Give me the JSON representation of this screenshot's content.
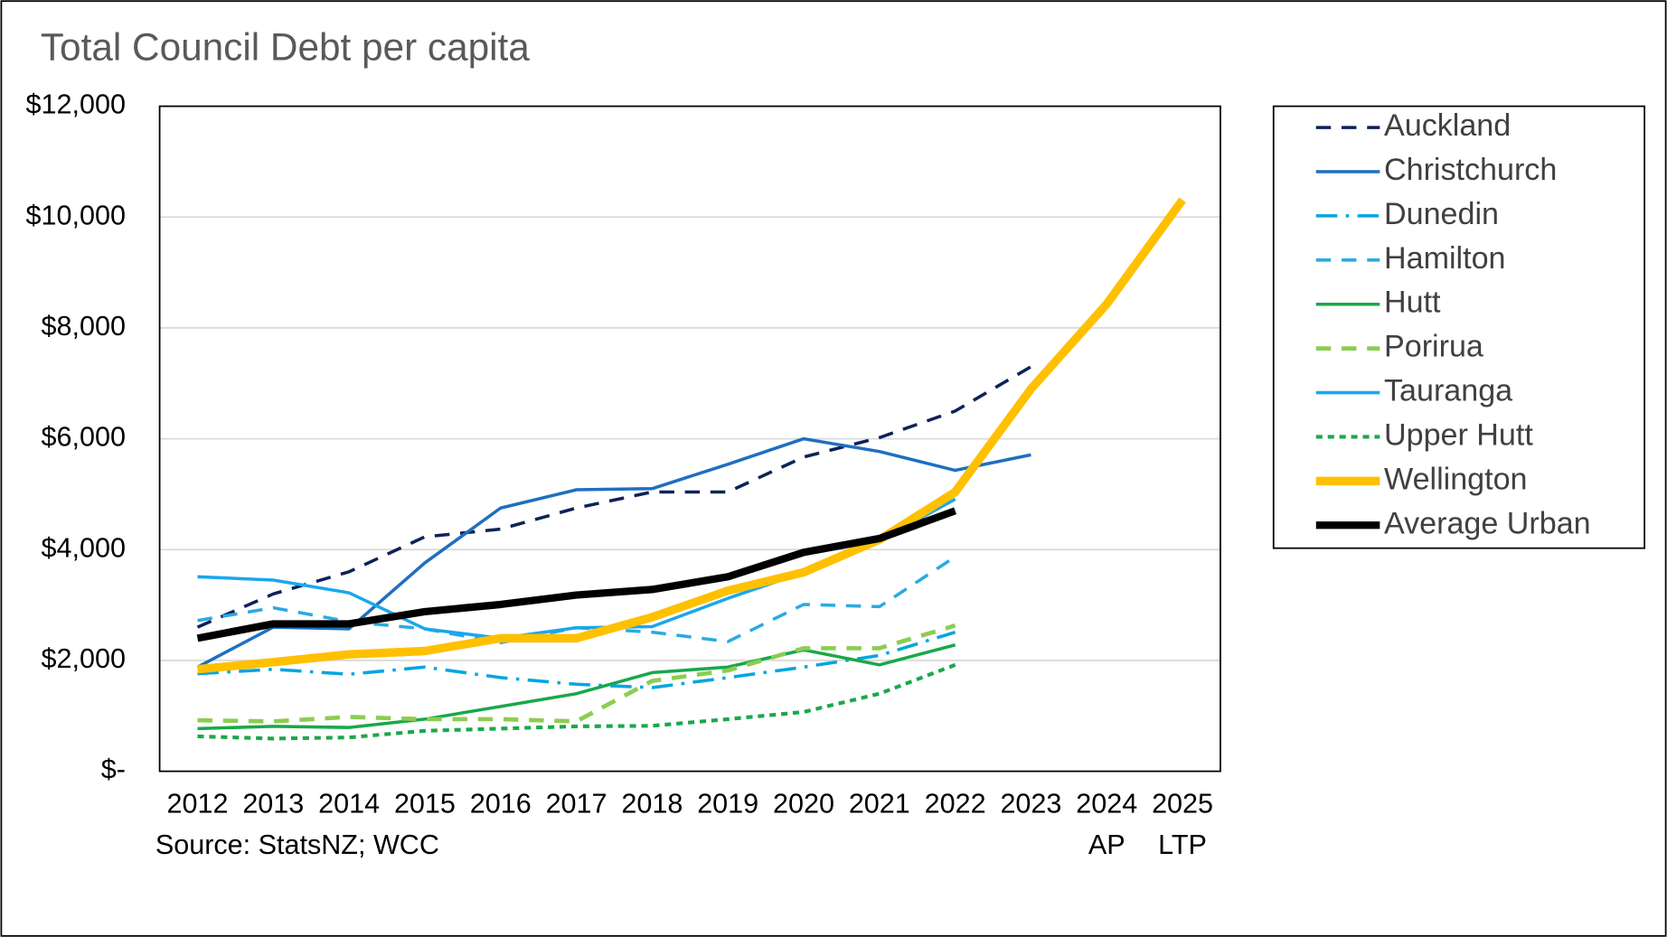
{
  "chart_data": {
    "type": "line",
    "title": "Total Council Debt per capita",
    "source": "Source: StatsNZ; WCC",
    "categories": [
      "2012",
      "2013",
      "2014",
      "2015",
      "2016",
      "2017",
      "2018",
      "2019",
      "2020",
      "2021",
      "2022",
      "2023",
      "2024",
      "2025"
    ],
    "category_sublabels": [
      null,
      null,
      null,
      null,
      null,
      null,
      null,
      null,
      null,
      null,
      null,
      null,
      "AP",
      "LTP"
    ],
    "ylim": [
      0,
      12000
    ],
    "yticks": [
      {
        "value": 0,
        "label": "$-"
      },
      {
        "value": 2000,
        "label": "$2,000"
      },
      {
        "value": 4000,
        "label": "$4,000"
      },
      {
        "value": 6000,
        "label": "$6,000"
      },
      {
        "value": 8000,
        "label": "$8,000"
      },
      {
        "value": 10000,
        "label": "$10,000"
      },
      {
        "value": 12000,
        "label": "$12,000"
      }
    ],
    "grid": true,
    "legend": "right",
    "series": [
      {
        "name": "Auckland",
        "color": "#0d2257",
        "dash": "14 10",
        "width": 3,
        "values": [
          2600,
          3200,
          3600,
          4230,
          4370,
          4750,
          5040,
          5040,
          5670,
          6020,
          6500,
          7300,
          null,
          null
        ]
      },
      {
        "name": "Christchurch",
        "color": "#1f6fbf",
        "dash": "",
        "width": 3,
        "values": [
          1880,
          2600,
          2570,
          3760,
          4750,
          5080,
          5100,
          5540,
          6000,
          5770,
          5430,
          5710,
          null,
          null
        ]
      },
      {
        "name": "Dunedin",
        "color": "#00a6e0",
        "dash": "20 8 3 8",
        "width": 3,
        "values": [
          1760,
          1840,
          1750,
          1880,
          1690,
          1570,
          1510,
          1690,
          1880,
          2090,
          2510,
          null,
          null,
          null
        ]
      },
      {
        "name": "Hamilton",
        "color": "#2aaae2",
        "dash": "14 10",
        "width": 3,
        "values": [
          2720,
          2950,
          2700,
          2570,
          2320,
          2590,
          2510,
          2340,
          3010,
          2970,
          3870,
          null,
          null,
          null
        ]
      },
      {
        "name": "Hutt",
        "color": "#19a84a",
        "dash": "",
        "width": 3,
        "values": [
          770,
          810,
          790,
          940,
          1170,
          1400,
          1780,
          1880,
          2190,
          1920,
          2280,
          null,
          null,
          null
        ]
      },
      {
        "name": "Porirua",
        "color": "#8ccd50",
        "dash": "14 10",
        "width": 4,
        "values": [
          920,
          900,
          980,
          940,
          940,
          900,
          1630,
          1820,
          2220,
          2220,
          2630,
          null,
          null,
          null
        ]
      },
      {
        "name": "Tauranga",
        "color": "#1aa7ec",
        "dash": "",
        "width": 3,
        "values": [
          3510,
          3450,
          3220,
          2570,
          2400,
          2590,
          2610,
          3120,
          3590,
          4160,
          4910,
          null,
          null,
          null
        ]
      },
      {
        "name": "Upper Hutt",
        "color": "#1aa84a",
        "dash": "6 5",
        "width": 3.5,
        "values": [
          630,
          590,
          610,
          730,
          770,
          810,
          820,
          940,
          1070,
          1400,
          1920,
          null,
          null,
          null
        ]
      },
      {
        "name": "Wellington",
        "color": "#ffc000",
        "dash": "",
        "width": 8,
        "values": [
          1840,
          1970,
          2110,
          2170,
          2400,
          2400,
          2780,
          3260,
          3590,
          4180,
          5040,
          6900,
          8430,
          10310
        ]
      },
      {
        "name": "Average Urban",
        "color": "#000000",
        "dash": "",
        "width": 7,
        "values": [
          2400,
          2660,
          2660,
          2880,
          3010,
          3180,
          3280,
          3510,
          3950,
          4200,
          4700,
          null,
          null,
          null
        ]
      }
    ]
  }
}
